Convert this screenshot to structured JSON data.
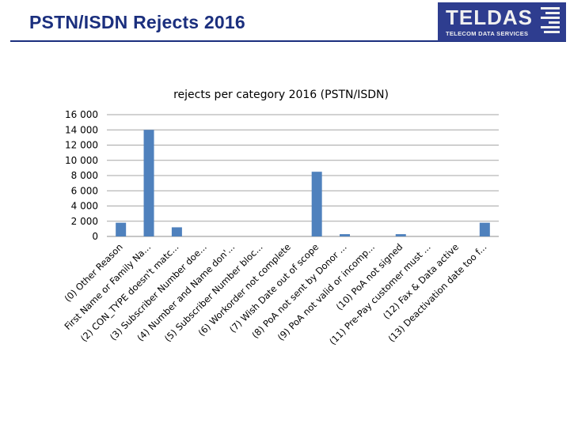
{
  "header": {
    "title": "PSTN/ISDN Rejects 2016",
    "logo_text": "TELDAS",
    "logo_subtitle": "TELECOM DATA SERVICES"
  },
  "colors": {
    "title": "#1b2f7e",
    "logo_bg": "#2e3d8f",
    "bar": "#4f81bd",
    "grid": "#a6a6a6"
  },
  "chart_data": {
    "type": "bar",
    "title": "rejects per category 2016 (PSTN/ISDN)",
    "xlabel": "",
    "ylabel": "",
    "ylim": [
      0,
      16000
    ],
    "yticks": [
      0,
      2000,
      4000,
      6000,
      8000,
      10000,
      12000,
      14000,
      16000
    ],
    "ytick_labels": [
      "0",
      "2 000",
      "4 000",
      "6 000",
      "8 000",
      "10 000",
      "12 000",
      "14 000",
      "16 000"
    ],
    "grid": true,
    "categories": [
      "(0) Other Reason",
      "First Name or Family Na...",
      "(2) CON_TYPE doesn't matc...",
      "(3) Subscriber Number doe...",
      "(4) Number and Name don'...",
      "(5) Subscriber Number bloc...",
      "(6) Workorder not complete",
      "(7) Wish Date out of scope",
      "(8) PoA not sent by Donor ...",
      "(9) PoA not valid or incomp...",
      "(10) PoA not signed",
      "(11) Pre-Pay customer must ...",
      "(12) Fax & Data active",
      "(13) Deactivation date too f..."
    ],
    "values": [
      1800,
      14000,
      1200,
      0,
      0,
      0,
      0,
      8500,
      300,
      0,
      300,
      0,
      0,
      1800
    ]
  }
}
